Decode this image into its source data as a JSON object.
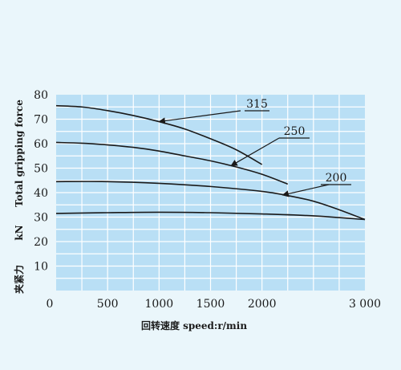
{
  "chart_data": {
    "type": "line",
    "xlabel": "回转速度 speed:r/min",
    "ylabel_cn": "夹紧力",
    "ylabel_unit": "kN",
    "ylabel_en": "Total gripping force",
    "x_ticks": [
      "0",
      "500",
      "1000",
      "1500",
      "2000",
      "3 000"
    ],
    "y_ticks": [
      "10",
      "20",
      "30",
      "40",
      "50",
      "60",
      "70",
      "80"
    ],
    "xlim": [
      0,
      3000
    ],
    "ylim": [
      0,
      80
    ],
    "grid": true,
    "plot_background": "#b9dff5",
    "grid_color": "#ffffff",
    "line_color": "#1a1a1a",
    "series": [
      {
        "name": "315",
        "x": [
          0,
          250,
          500,
          750,
          1000,
          1250,
          1500,
          1750,
          2000
        ],
        "y": [
          75.5,
          75,
          73.5,
          71.5,
          69,
          66,
          62,
          57.5,
          51.5
        ],
        "label_at": [
          1000,
          69
        ]
      },
      {
        "name": "250",
        "x": [
          0,
          250,
          500,
          750,
          1000,
          1250,
          1500,
          1750,
          2000,
          2250
        ],
        "y": [
          60.5,
          60.2,
          59.5,
          58.5,
          57,
          55,
          53,
          50.5,
          47.5,
          43.5
        ],
        "label_at": [
          1700,
          51
        ]
      },
      {
        "name": "200",
        "x": [
          0,
          500,
          1000,
          1500,
          2000,
          2250,
          2500,
          2750,
          3000
        ],
        "y": [
          44.5,
          44.5,
          43.8,
          42.5,
          40.5,
          38.8,
          36.5,
          33,
          29
        ],
        "label_at": [
          2200,
          39
        ]
      },
      {
        "name": "",
        "x": [
          0,
          500,
          1000,
          1500,
          2000,
          2500,
          3000
        ],
        "y": [
          31.5,
          31.8,
          32,
          31.8,
          31.3,
          30.5,
          29
        ],
        "label_at": null
      }
    ]
  }
}
